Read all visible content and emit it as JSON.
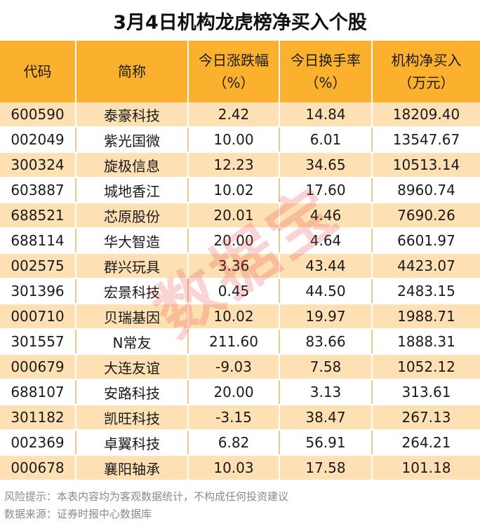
{
  "title": "3月4日机构龙虎榜净买入个股",
  "headers": {
    "code": "代码",
    "name": "简称",
    "change_line1": "今日涨跌幅",
    "change_line2": "（%）",
    "turnover_line1": "今日换手率",
    "turnover_line2": "（%）",
    "net_buy_line1": "机构净买入",
    "net_buy_line2": "（万元）"
  },
  "rows": [
    {
      "code": "600590",
      "name": "泰豪科技",
      "change": "2.42",
      "turnover": "14.84",
      "net_buy": "18209.40"
    },
    {
      "code": "002049",
      "name": "紫光国微",
      "change": "10.00",
      "turnover": "6.01",
      "net_buy": "13547.67"
    },
    {
      "code": "300324",
      "name": "旋极信息",
      "change": "12.23",
      "turnover": "34.65",
      "net_buy": "10513.14"
    },
    {
      "code": "603887",
      "name": "城地香江",
      "change": "10.02",
      "turnover": "17.60",
      "net_buy": "8960.74"
    },
    {
      "code": "688521",
      "name": "芯原股份",
      "change": "20.01",
      "turnover": "4.46",
      "net_buy": "7690.26"
    },
    {
      "code": "688114",
      "name": "华大智造",
      "change": "20.00",
      "turnover": "4.64",
      "net_buy": "6601.97"
    },
    {
      "code": "002575",
      "name": "群兴玩具",
      "change": "3.36",
      "turnover": "43.44",
      "net_buy": "4423.07"
    },
    {
      "code": "301396",
      "name": "宏景科技",
      "change": "0.45",
      "turnover": "44.50",
      "net_buy": "2483.15"
    },
    {
      "code": "000710",
      "name": "贝瑞基因",
      "change": "10.02",
      "turnover": "19.97",
      "net_buy": "1988.71"
    },
    {
      "code": "301557",
      "name": "N常友",
      "change": "211.60",
      "turnover": "83.66",
      "net_buy": "1888.31"
    },
    {
      "code": "000679",
      "name": "大连友谊",
      "change": "-9.03",
      "turnover": "7.58",
      "net_buy": "1052.12"
    },
    {
      "code": "688107",
      "name": "安路科技",
      "change": "20.00",
      "turnover": "3.13",
      "net_buy": "313.61"
    },
    {
      "code": "301182",
      "name": "凯旺科技",
      "change": "-3.15",
      "turnover": "38.47",
      "net_buy": "267.13"
    },
    {
      "code": "002369",
      "name": "卓翼科技",
      "change": "6.82",
      "turnover": "56.91",
      "net_buy": "264.21"
    },
    {
      "code": "000678",
      "name": "襄阳轴承",
      "change": "10.03",
      "turnover": "17.58",
      "net_buy": "101.18"
    }
  ],
  "footer": {
    "risk": "风险提示：本表内容均为客观数据统计，不构成任何投资建议",
    "source": "数据来源：证券时报中心数据库"
  },
  "watermark": "数据宝",
  "colors": {
    "header_bg": "#fbb12d",
    "stripe_bg": "#fde0b3",
    "watermark": "#e63c3c"
  }
}
